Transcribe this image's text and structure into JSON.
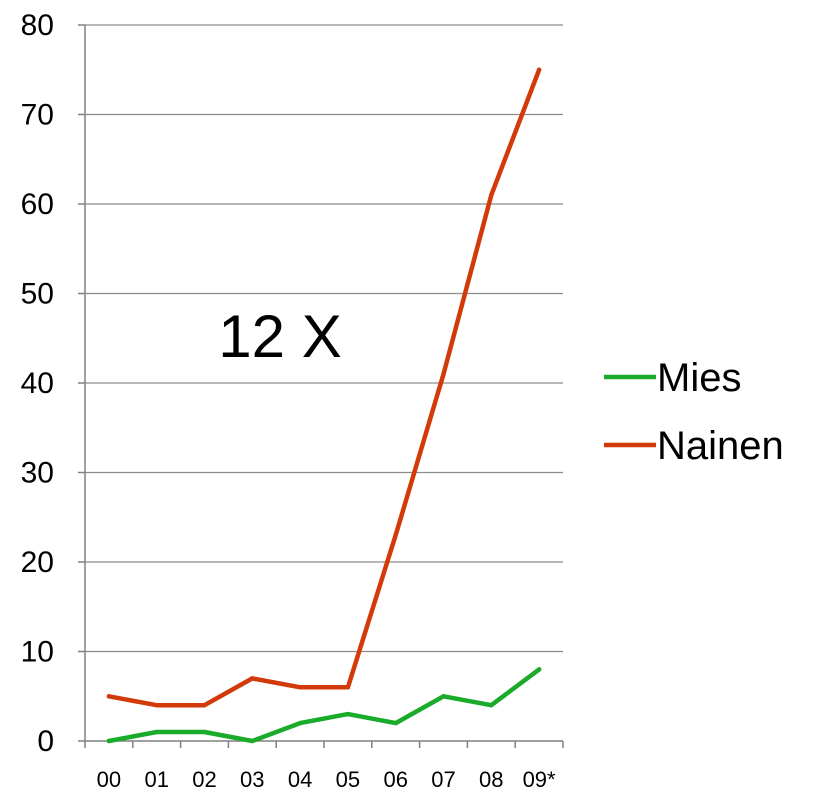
{
  "chart_data": {
    "type": "line",
    "categories": [
      "00",
      "01",
      "02",
      "03",
      "04",
      "05",
      "06",
      "07",
      "08",
      "09*"
    ],
    "series": [
      {
        "name": "Mies",
        "color": "#1aab2a",
        "values": [
          0,
          1,
          1,
          0,
          2,
          3,
          2,
          5,
          4,
          8
        ]
      },
      {
        "name": "Nainen",
        "color": "#d23a0a",
        "values": [
          5,
          4,
          4,
          7,
          6,
          6,
          23,
          41,
          61,
          75
        ]
      }
    ],
    "ylim": [
      0,
      80
    ],
    "yticks": [
      0,
      10,
      20,
      30,
      40,
      50,
      60,
      70,
      80
    ],
    "annotation": "12 X",
    "grid": true,
    "legend_position": "right"
  }
}
